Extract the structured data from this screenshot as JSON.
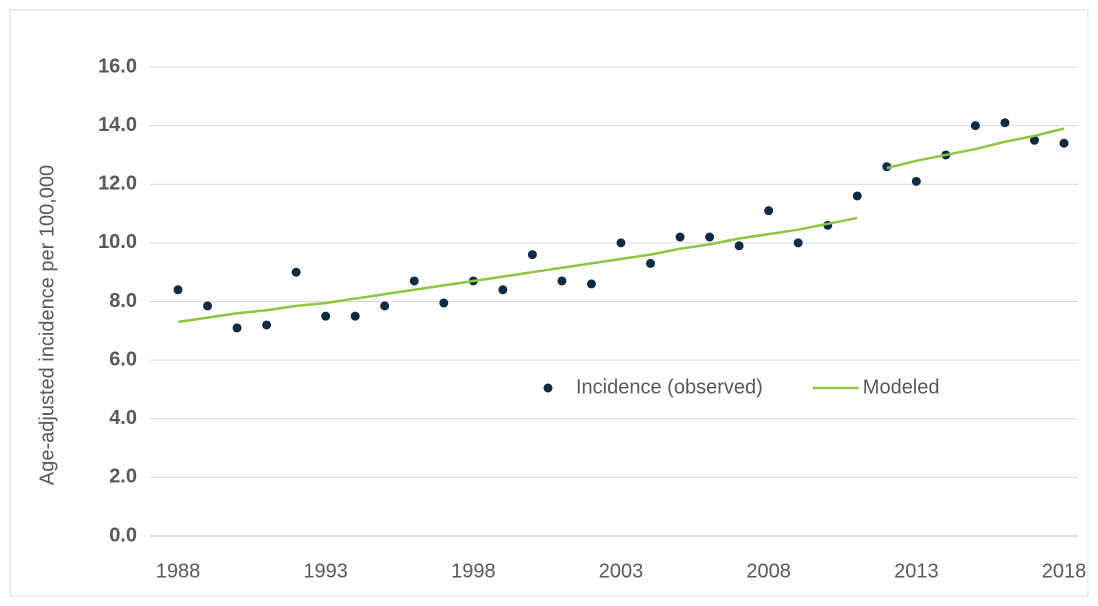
{
  "chart_data": {
    "type": "scatter",
    "y_label": "Age-adjusted incidence per 100,000",
    "x": [
      1988,
      1989,
      1990,
      1991,
      1992,
      1993,
      1994,
      1995,
      1996,
      1997,
      1998,
      1999,
      2000,
      2001,
      2002,
      2003,
      2004,
      2005,
      2006,
      2007,
      2008,
      2009,
      2010,
      2011,
      2012,
      2013,
      2014,
      2015,
      2016,
      2017,
      2018
    ],
    "series": [
      {
        "name": "Incidence (observed)",
        "color": "#0d2b45",
        "type": "scatter",
        "values": [
          8.4,
          7.85,
          7.1,
          7.2,
          9.0,
          7.5,
          7.5,
          7.85,
          8.7,
          7.95,
          8.7,
          8.4,
          9.6,
          8.7,
          8.6,
          10.0,
          9.3,
          10.2,
          10.2,
          9.9,
          11.1,
          10.0,
          10.6,
          11.6,
          12.6,
          12.1,
          13.0,
          14.0,
          14.1,
          13.5,
          13.4
        ]
      },
      {
        "name": "Modeled",
        "color": "#8dc63f",
        "type": "line",
        "x": [
          1988,
          1989,
          1990,
          1991,
          1992,
          1993,
          1994,
          1995,
          1996,
          1997,
          1998,
          1999,
          2000,
          2001,
          2002,
          2003,
          2004,
          2005,
          2006,
          2007,
          2008,
          2009,
          2010,
          2011,
          null,
          2012,
          2013,
          2014,
          2015,
          2016,
          2017,
          2018
        ],
        "values": [
          7.3,
          7.45,
          7.6,
          7.7,
          7.85,
          7.95,
          8.1,
          8.25,
          8.4,
          8.55,
          8.7,
          8.85,
          9.0,
          9.15,
          9.3,
          9.45,
          9.6,
          9.8,
          9.95,
          10.15,
          10.3,
          10.45,
          10.65,
          10.85,
          null,
          12.55,
          12.8,
          13.0,
          13.2,
          13.45,
          13.65,
          13.9
        ]
      }
    ],
    "xlim": [
      1988,
      2018
    ],
    "xticks": [
      1988,
      1993,
      1998,
      2003,
      2008,
      2013,
      2018
    ],
    "ylim": [
      0,
      16
    ],
    "yticks": [
      {
        "value": 0,
        "label": "0.0"
      },
      {
        "value": 2,
        "label": "2.0"
      },
      {
        "value": 4,
        "label": "4.0"
      },
      {
        "value": 6,
        "label": "6.0"
      },
      {
        "value": 8,
        "label": "8.0"
      },
      {
        "value": 10,
        "label": "10.0"
      },
      {
        "value": 12,
        "label": "12.0"
      },
      {
        "value": 14,
        "label": "14.0"
      },
      {
        "value": 16,
        "label": "16.0"
      }
    ],
    "grid": true
  }
}
